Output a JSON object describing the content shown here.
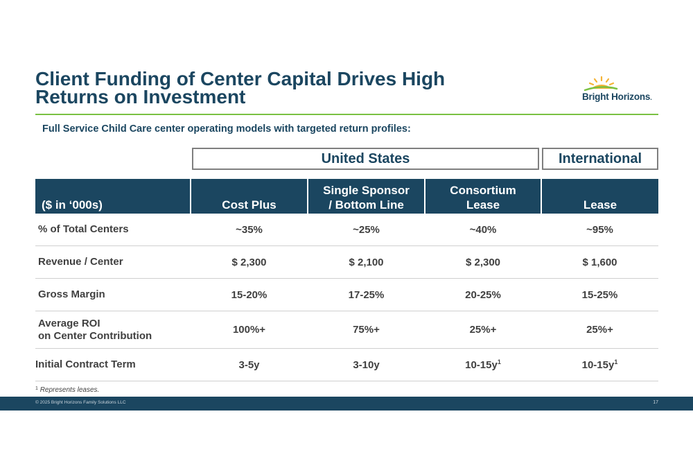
{
  "title": {
    "line1": "Client Funding of Center Capital Drives High",
    "line2": "Returns on Investment"
  },
  "logo": {
    "text": "Bright Horizons",
    "mark": "."
  },
  "subtitle": "Full Service Child Care center operating models with targeted return profiles:",
  "groups": {
    "us": "United States",
    "international": "International"
  },
  "table": {
    "headers": [
      {
        "line1": "",
        "line2": "($ in ‘000s)"
      },
      {
        "line1": "",
        "line2": "Cost Plus"
      },
      {
        "line1": "Single Sponsor",
        "line2": "/ Bottom Line"
      },
      {
        "line1": "Consortium",
        "line2": "Lease"
      },
      {
        "line1": "",
        "line2": "Lease"
      }
    ],
    "rows": [
      {
        "label1": "% of Total Centers",
        "label2": "",
        "values": [
          "~35%",
          "~25%",
          "~40%",
          "~95%"
        ]
      },
      {
        "label1": "Revenue / Center",
        "label2": "",
        "values": [
          "$ 2,300",
          "$ 2,100",
          "$ 2,300",
          "$ 1,600"
        ]
      },
      {
        "label1": "Gross Margin",
        "label2": "",
        "values": [
          "15-20%",
          "17-25%",
          "20-25%",
          "15-25%"
        ]
      },
      {
        "label1": "Average ROI",
        "label2": "on Center Contribution",
        "values": [
          "100%+",
          "75%+",
          "25%+",
          "25%+"
        ]
      },
      {
        "label1": "Initial Contract Term",
        "label2": "",
        "values": [
          "3-5y",
          "3-10y",
          "10-15y",
          "10-15y"
        ],
        "sups": [
          "",
          "",
          "1",
          "1"
        ]
      }
    ]
  },
  "footnote": {
    "marker": "1",
    "text": "Represents leases."
  },
  "footer": {
    "copyright": "© 2025 Bright Horizons Family Solutions LLC",
    "page": "17"
  },
  "colors": {
    "navy": "#1b4660",
    "green": "#7ac143",
    "sun": "#f5b335"
  }
}
